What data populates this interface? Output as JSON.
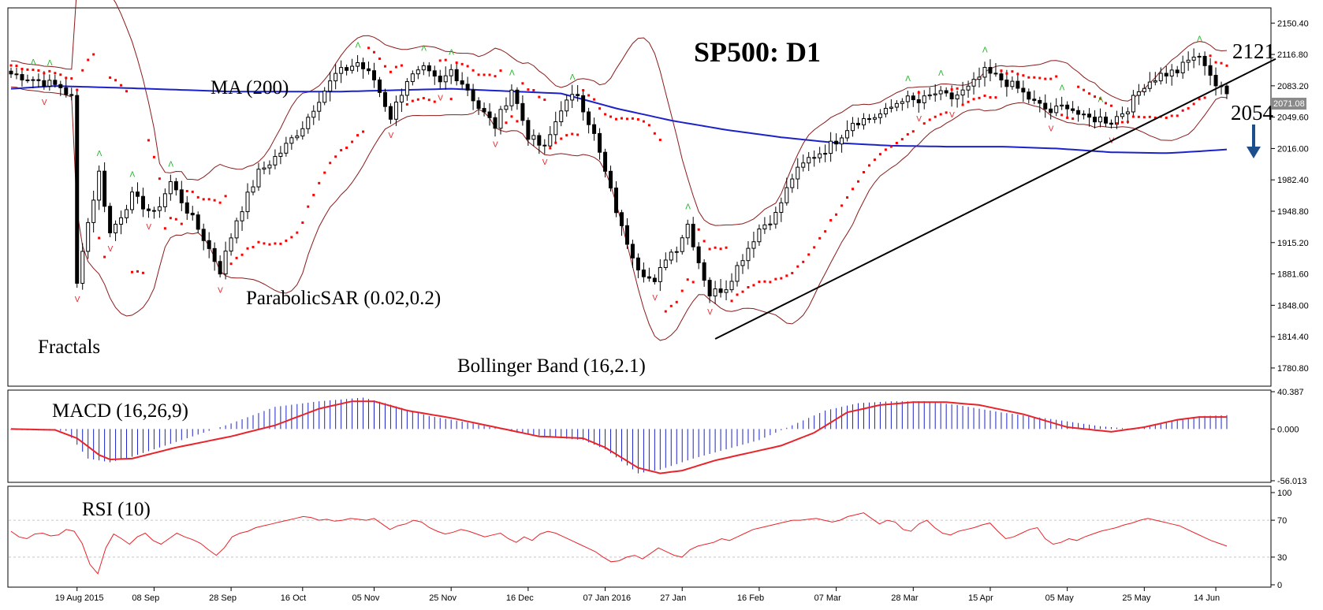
{
  "chart_data": [
    {
      "type": "candlestick",
      "panel": "price",
      "title": "SP500: D1",
      "ylim": [
        1763.0,
        2165.0
      ],
      "y_ticks": [
        "2150.40",
        "2116.80",
        "2083.20",
        "2049.60",
        "2016.00",
        "1982.40",
        "1948.80",
        "1915.20",
        "1881.60",
        "1848.00",
        "1814.40",
        "1780.80"
      ],
      "current_price_label": "2071.08",
      "x_ticks": [
        "19 Aug 2015",
        "08 Sep",
        "28 Sep",
        "16 Oct",
        "05 Nov",
        "25 Nov",
        "16 Dec",
        "07 Jan 2016",
        "27 Jan",
        "16 Feb",
        "07 Mar",
        "28 Mar",
        "15 Apr",
        "05 May",
        "25 May",
        "14 Jun"
      ],
      "x_tick_bar_index": [
        12,
        26,
        40,
        53,
        66,
        80,
        94,
        108,
        122,
        136,
        150,
        164,
        178,
        192,
        206,
        219
      ],
      "annotations": {
        "ma": "MA (200)",
        "sar": "ParabolicSAR (0.02,0.2)",
        "fractals": "Fractals",
        "bollinger": "Bollinger Band (16,2.1)",
        "level_high": "2121",
        "level_low": "2054"
      },
      "trendline": {
        "from": [
          128,
          1812
        ],
        "to": [
          222,
          2087
        ]
      },
      "series": [
        {
          "name": "MA (200)",
          "color": "#1c22c7",
          "values": []
        },
        {
          "name": "ParabolicSAR (0.02,0.2)",
          "color": "#ff0000",
          "values": []
        },
        {
          "name": "Bollinger Band (16,2.1)",
          "color": "#8b1a1a",
          "values": []
        },
        {
          "name": "Fractals",
          "color_up": "#16b81f",
          "color_down": "#e8232a",
          "values": []
        }
      ],
      "close_anchors": [
        [
          0,
          2096
        ],
        [
          3,
          2092
        ],
        [
          6,
          2087
        ],
        [
          9,
          2082
        ],
        [
          11,
          2070
        ],
        [
          12,
          1870
        ],
        [
          13,
          1910
        ],
        [
          16,
          1990
        ],
        [
          18,
          1925
        ],
        [
          22,
          1965
        ],
        [
          26,
          1945
        ],
        [
          29,
          1980
        ],
        [
          32,
          1950
        ],
        [
          35,
          1920
        ],
        [
          38,
          1885
        ],
        [
          41,
          1940
        ],
        [
          45,
          1990
        ],
        [
          49,
          2012
        ],
        [
          53,
          2040
        ],
        [
          56,
          2070
        ],
        [
          59,
          2095
        ],
        [
          63,
          2108
        ],
        [
          66,
          2090
        ],
        [
          69,
          2050
        ],
        [
          72,
          2090
        ],
        [
          75,
          2100
        ],
        [
          78,
          2085
        ],
        [
          80,
          2100
        ],
        [
          83,
          2080
        ],
        [
          85,
          2060
        ],
        [
          88,
          2040
        ],
        [
          91,
          2080
        ],
        [
          94,
          2030
        ],
        [
          97,
          2015
        ],
        [
          100,
          2060
        ],
        [
          103,
          2075
        ],
        [
          106,
          2030
        ],
        [
          108,
          1990
        ],
        [
          111,
          1930
        ],
        [
          114,
          1890
        ],
        [
          117,
          1870
        ],
        [
          119,
          1900
        ],
        [
          121,
          1910
        ],
        [
          123,
          1935
        ],
        [
          125,
          1895
        ],
        [
          127,
          1860
        ],
        [
          130,
          1868
        ],
        [
          133,
          1900
        ],
        [
          136,
          1930
        ],
        [
          139,
          1945
        ],
        [
          142,
          1985
        ],
        [
          145,
          2005
        ],
        [
          148,
          2015
        ],
        [
          150,
          2025
        ],
        [
          153,
          2045
        ],
        [
          156,
          2048
        ],
        [
          159,
          2055
        ],
        [
          162,
          2070
        ],
        [
          165,
          2065
        ],
        [
          168,
          2075
        ],
        [
          171,
          2070
        ],
        [
          174,
          2080
        ],
        [
          177,
          2098
        ],
        [
          180,
          2090
        ],
        [
          183,
          2080
        ],
        [
          186,
          2065
        ],
        [
          189,
          2055
        ],
        [
          192,
          2063
        ],
        [
          195,
          2048
        ],
        [
          198,
          2048
        ],
        [
          200,
          2045
        ],
        [
          203,
          2060
        ],
        [
          206,
          2085
        ],
        [
          209,
          2095
        ],
        [
          212,
          2099
        ],
        [
          215,
          2115
        ],
        [
          217,
          2108
        ],
        [
          219,
          2084
        ],
        [
          221,
          2074
        ]
      ],
      "ma_anchors": [
        [
          0,
          2080
        ],
        [
          8,
          2083
        ],
        [
          20,
          2081
        ],
        [
          40,
          2077
        ],
        [
          60,
          2077
        ],
        [
          80,
          2080
        ],
        [
          100,
          2075
        ],
        [
          110,
          2059
        ],
        [
          120,
          2046
        ],
        [
          130,
          2036
        ],
        [
          140,
          2028
        ],
        [
          150,
          2022
        ],
        [
          160,
          2019
        ],
        [
          170,
          2018
        ],
        [
          180,
          2018
        ],
        [
          190,
          2016
        ],
        [
          200,
          2012
        ],
        [
          210,
          2011
        ],
        [
          216,
          2013
        ],
        [
          221,
          2015
        ]
      ]
    },
    {
      "type": "histogram+line",
      "panel": "macd",
      "title": "MACD (16,26,9)",
      "ylim": [
        -56.013,
        40.387
      ],
      "y_ticks": [
        "40.387",
        "0.000",
        "-56.013"
      ],
      "hist_anchors": [
        [
          0,
          -1
        ],
        [
          10,
          -2
        ],
        [
          14,
          -32
        ],
        [
          18,
          -36
        ],
        [
          22,
          -30
        ],
        [
          28,
          -18
        ],
        [
          34,
          -6
        ],
        [
          40,
          6
        ],
        [
          48,
          24
        ],
        [
          56,
          30
        ],
        [
          64,
          34
        ],
        [
          68,
          28
        ],
        [
          76,
          14
        ],
        [
          84,
          6
        ],
        [
          92,
          -4
        ],
        [
          100,
          -10
        ],
        [
          104,
          -12
        ],
        [
          108,
          -22
        ],
        [
          114,
          -48
        ],
        [
          118,
          -44
        ],
        [
          124,
          -32
        ],
        [
          130,
          -22
        ],
        [
          136,
          -12
        ],
        [
          142,
          4
        ],
        [
          148,
          20
        ],
        [
          154,
          28
        ],
        [
          160,
          30
        ],
        [
          166,
          30
        ],
        [
          172,
          26
        ],
        [
          180,
          18
        ],
        [
          190,
          10
        ],
        [
          198,
          3
        ],
        [
          204,
          0
        ],
        [
          210,
          8
        ],
        [
          216,
          14
        ],
        [
          221,
          15
        ]
      ],
      "signal_anchors": [
        [
          0,
          0
        ],
        [
          8,
          -1
        ],
        [
          12,
          -10
        ],
        [
          16,
          -28
        ],
        [
          18,
          -33
        ],
        [
          22,
          -32
        ],
        [
          30,
          -20
        ],
        [
          40,
          -8
        ],
        [
          48,
          4
        ],
        [
          56,
          22
        ],
        [
          62,
          30
        ],
        [
          66,
          30
        ],
        [
          72,
          20
        ],
        [
          80,
          12
        ],
        [
          88,
          2
        ],
        [
          96,
          -8
        ],
        [
          104,
          -10
        ],
        [
          108,
          -20
        ],
        [
          114,
          -42
        ],
        [
          118,
          -48
        ],
        [
          122,
          -45
        ],
        [
          128,
          -34
        ],
        [
          134,
          -26
        ],
        [
          140,
          -18
        ],
        [
          146,
          -4
        ],
        [
          152,
          18
        ],
        [
          158,
          26
        ],
        [
          164,
          29
        ],
        [
          170,
          29
        ],
        [
          176,
          26
        ],
        [
          184,
          16
        ],
        [
          192,
          2
        ],
        [
          200,
          -3
        ],
        [
          206,
          2
        ],
        [
          212,
          10
        ],
        [
          216,
          13
        ],
        [
          221,
          13
        ]
      ]
    },
    {
      "type": "line",
      "panel": "rsi",
      "title": "RSI (10)",
      "ylim": [
        0,
        100
      ],
      "y_ticks": [
        "100",
        "70",
        "30",
        "0"
      ],
      "values": [
        58,
        52,
        50,
        55,
        56,
        53,
        54,
        60,
        58,
        45,
        22,
        12,
        40,
        55,
        50,
        44,
        52,
        56,
        48,
        44,
        50,
        56,
        52,
        49,
        45,
        38,
        32,
        40,
        52,
        56,
        58,
        62,
        64,
        66,
        68,
        70,
        72,
        74,
        73,
        70,
        71,
        69,
        70,
        72,
        71,
        70,
        72,
        66,
        60,
        64,
        66,
        70,
        68,
        62,
        58,
        55,
        57,
        60,
        58,
        55,
        52,
        54,
        56,
        50,
        46,
        52,
        48,
        55,
        58,
        56,
        52,
        48,
        44,
        40,
        36,
        30,
        25,
        26,
        30,
        32,
        28,
        34,
        40,
        36,
        32,
        30,
        38,
        42,
        44,
        46,
        50,
        48,
        52,
        56,
        60,
        62,
        64,
        66,
        68,
        70,
        70,
        71,
        72,
        70,
        68,
        70,
        74,
        76,
        78,
        72,
        66,
        70,
        68,
        60,
        58,
        66,
        70,
        62,
        56,
        54,
        58,
        60,
        62,
        65,
        67,
        58,
        50,
        52,
        56,
        60,
        62,
        50,
        44,
        46,
        50,
        48,
        52,
        55,
        58,
        60,
        62,
        65,
        67,
        70,
        72,
        70,
        68,
        66,
        64,
        60,
        56,
        52,
        48,
        45,
        42
      ],
      "x_range": [
        0,
        221
      ]
    }
  ]
}
